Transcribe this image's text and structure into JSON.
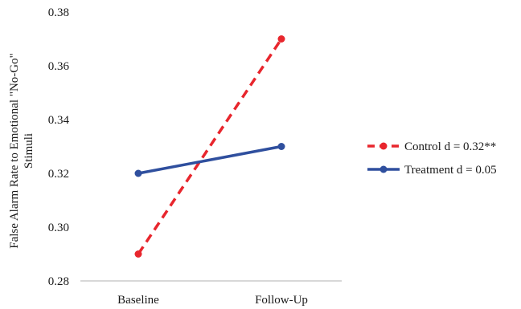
{
  "chart_data": {
    "type": "line",
    "categories": [
      "Baseline",
      "Follow-Up"
    ],
    "series": [
      {
        "name": "Control d = 0.32**",
        "values": [
          0.29,
          0.37
        ],
        "color": "#e8262d",
        "dash": true
      },
      {
        "name": "Treatment d = 0.05",
        "values": [
          0.32,
          0.33
        ],
        "color": "#2f4f9e",
        "dash": false
      }
    ],
    "ylabel_line1": "False Alarm Rate to Emotional \"No-Go\"",
    "ylabel_line2": "Stimuli",
    "ylim": [
      0.28,
      0.38
    ],
    "yticks": [
      "0.38",
      "0.36",
      "0.34",
      "0.32",
      "0.30",
      "0.28"
    ],
    "grid": false,
    "legend_position": "right"
  }
}
